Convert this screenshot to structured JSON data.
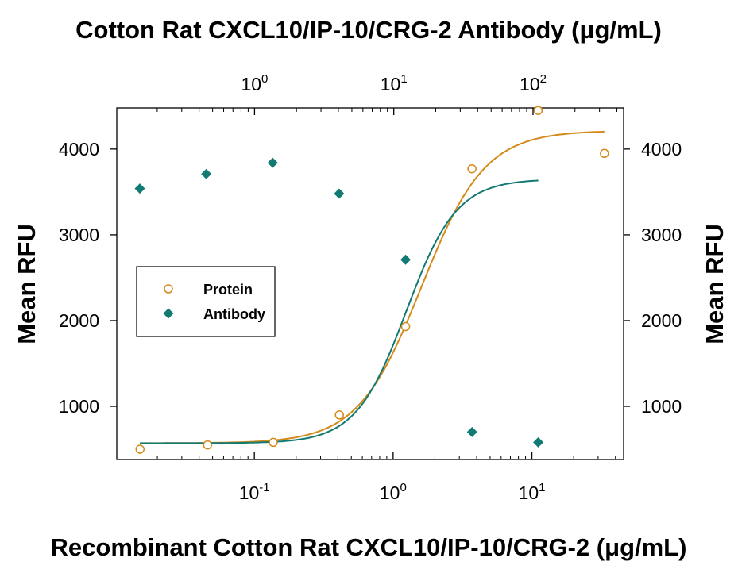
{
  "chart_data": {
    "type": "scatter",
    "top_axis_title": "Cotton Rat CXCL10/IP-10/CRG-2 Antibody (μg/mL)",
    "bottom_axis_title": "Recombinant Cotton Rat CXCL10/IP-10/CRG-2 (μg/mL)",
    "left_axis_title": "Mean RFU",
    "right_axis_title": "Mean RFU",
    "y_ticks": [
      1000,
      2000,
      3000,
      4000
    ],
    "ylim": [
      380,
      4480
    ],
    "bottom_axis": {
      "scale": "log",
      "range": [
        0.0102,
        45.8
      ],
      "tick_labels": [
        {
          "value": 0.1,
          "base": "10",
          "exponent": "-1"
        },
        {
          "value": 1,
          "base": "10",
          "exponent": "0"
        },
        {
          "value": 10,
          "base": "10",
          "exponent": "1"
        }
      ]
    },
    "top_axis": {
      "scale": "log",
      "range": [
        0.1025,
        447
      ],
      "tick_labels": [
        {
          "value": 1,
          "base": "10",
          "exponent": "0"
        },
        {
          "value": 10,
          "base": "10",
          "exponent": "1"
        },
        {
          "value": 100,
          "base": "10",
          "exponent": "2"
        }
      ]
    },
    "legend": {
      "position": "left",
      "entries": [
        "Protein",
        "Antibody"
      ]
    },
    "grid": false,
    "series": [
      {
        "name": "Protein",
        "axis": "bottom",
        "marker": "open-circle",
        "color": "#d48a1a",
        "points": [
          {
            "x": 0.015,
            "y": 500
          },
          {
            "x": 0.046,
            "y": 550
          },
          {
            "x": 0.137,
            "y": 580
          },
          {
            "x": 0.41,
            "y": 900
          },
          {
            "x": 1.23,
            "y": 1930
          },
          {
            "x": 3.7,
            "y": 3770
          },
          {
            "x": 11.1,
            "y": 4450
          },
          {
            "x": 33.3,
            "y": 3950
          }
        ],
        "fit": {
          "bottom": 570,
          "top": 4215,
          "ec50": 1.6,
          "hill": 1.9
        }
      },
      {
        "name": "Antibody",
        "axis": "top",
        "marker": "filled-diamond",
        "color": "#117a72",
        "points": [
          {
            "x": 0.15,
            "y": 3540
          },
          {
            "x": 0.45,
            "y": 3710
          },
          {
            "x": 1.35,
            "y": 3840
          },
          {
            "x": 4.05,
            "y": 3480
          },
          {
            "x": 12.15,
            "y": 2710
          },
          {
            "x": 36.5,
            "y": 700
          },
          {
            "x": 109,
            "y": 580
          }
        ],
        "fit": {
          "bottom": 570,
          "top": 3650,
          "ec50": 12.3,
          "hill": 2.4
        }
      }
    ]
  }
}
